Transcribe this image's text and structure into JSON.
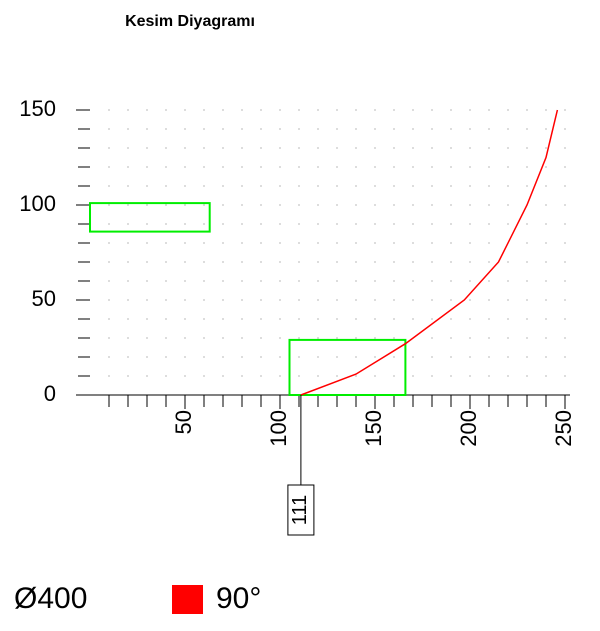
{
  "chart_data": {
    "type": "line",
    "title": "Kesim Diyagramı",
    "xlim": [
      0,
      250
    ],
    "ylim": [
      0,
      150
    ],
    "xticks": [
      50,
      100,
      150,
      200,
      250
    ],
    "yticks": [
      0,
      50,
      100,
      150
    ],
    "minor_step": 10,
    "grid": "dots",
    "series": [
      {
        "name": "90°",
        "color": "#ff0000",
        "x": [
          111,
          140,
          166,
          197,
          215,
          230,
          240,
          246
        ],
        "values": [
          0,
          11,
          27,
          50,
          70,
          100,
          125,
          150
        ]
      }
    ],
    "rects": [
      {
        "x": [
          0,
          63
        ],
        "y": [
          86,
          101
        ],
        "color": "#00ee00"
      },
      {
        "x": [
          105,
          166
        ],
        "y": [
          0,
          29
        ],
        "color": "#00ee00"
      }
    ],
    "marker": 111,
    "diameter": "Ø400"
  }
}
